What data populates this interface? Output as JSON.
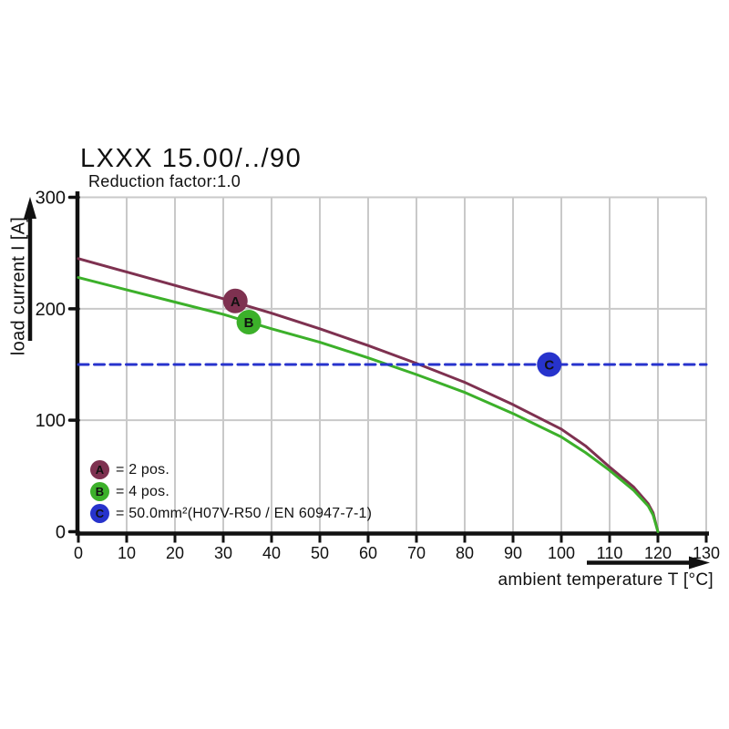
{
  "title": "LXXX 15.00/../90",
  "subtitle": "Reduction factor:1.0",
  "axes": {
    "x_label": "ambient temperature T [°C]",
    "y_label": "load current I [A]"
  },
  "legend": {
    "position": "inside-bottom-left",
    "items": [
      {
        "letter": "A",
        "label": "= 2 pos.",
        "color": "#7e3150"
      },
      {
        "letter": "B",
        "label": "= 4 pos.",
        "color": "#3cb02a"
      },
      {
        "letter": "C",
        "label": "= 50.0mm²(H07V-R50 / EN 60947-7-1)",
        "color": "#2733cc"
      }
    ]
  },
  "chart_data": {
    "type": "line",
    "title": "LXXX 15.00/../90",
    "subtitle": "Reduction factor:1.0",
    "xlabel": "ambient temperature T [°C]",
    "ylabel": "load current I [A]",
    "xlim": [
      0,
      130
    ],
    "ylim": [
      0,
      300
    ],
    "x_ticks": [
      0,
      10,
      20,
      30,
      40,
      50,
      60,
      70,
      80,
      90,
      100,
      110,
      120,
      130
    ],
    "y_ticks": [
      0,
      100,
      200,
      300
    ],
    "grid": true,
    "grid_color": "#c9c9c9",
    "series": [
      {
        "name": "2 pos.",
        "legend_letter": "A",
        "color": "#7e3150",
        "style": "solid",
        "x": [
          0,
          10,
          20,
          30,
          40,
          50,
          60,
          70,
          80,
          90,
          100,
          105,
          110,
          115,
          118,
          119,
          120
        ],
        "y": [
          245,
          233,
          221,
          209,
          196,
          182,
          167,
          151,
          134,
          114,
          92,
          77,
          58,
          40,
          25,
          17,
          0
        ],
        "marker": {
          "letter": "A",
          "x": 32.5,
          "y": 207
        }
      },
      {
        "name": "4 pos.",
        "legend_letter": "B",
        "color": "#3cb02a",
        "style": "solid",
        "x": [
          0,
          10,
          20,
          30,
          40,
          50,
          60,
          70,
          80,
          90,
          100,
          105,
          110,
          115,
          118,
          119,
          120
        ],
        "y": [
          228,
          217,
          206,
          195,
          182,
          170,
          156,
          141,
          125,
          106,
          85,
          71,
          55,
          37,
          23,
          15,
          0
        ],
        "marker": {
          "letter": "B",
          "x": 35.3,
          "y": 188
        }
      },
      {
        "name": "50.0mm²(H07V-R50 / EN 60947-7-1)",
        "legend_letter": "C",
        "color": "#2733cc",
        "style": "dashed",
        "x": [
          0,
          130
        ],
        "y": [
          150,
          150
        ],
        "marker": {
          "letter": "C",
          "x": 97.5,
          "y": 150
        }
      }
    ]
  }
}
